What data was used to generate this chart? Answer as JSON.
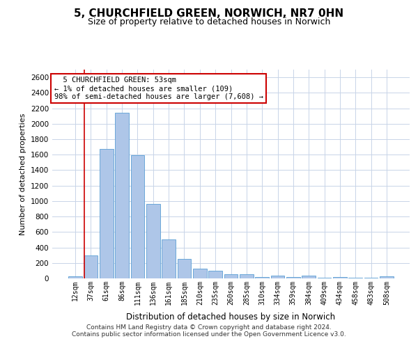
{
  "title_line1": "5, CHURCHFIELD GREEN, NORWICH, NR7 0HN",
  "title_line2": "Size of property relative to detached houses in Norwich",
  "xlabel": "Distribution of detached houses by size in Norwich",
  "ylabel": "Number of detached properties",
  "categories": [
    "12sqm",
    "37sqm",
    "61sqm",
    "86sqm",
    "111sqm",
    "136sqm",
    "161sqm",
    "185sqm",
    "210sqm",
    "235sqm",
    "260sqm",
    "285sqm",
    "310sqm",
    "334sqm",
    "359sqm",
    "384sqm",
    "409sqm",
    "434sqm",
    "458sqm",
    "483sqm",
    "508sqm"
  ],
  "values": [
    25,
    300,
    1670,
    2140,
    1590,
    960,
    500,
    250,
    125,
    100,
    50,
    50,
    20,
    40,
    20,
    40,
    5,
    20,
    5,
    5,
    25
  ],
  "bar_color": "#aec6e8",
  "bar_edge_color": "#5a9fd4",
  "grid_color": "#c8d4e8",
  "annotation_line1": "  5 CHURCHFIELD GREEN: 53sqm",
  "annotation_line2": "← 1% of detached houses are smaller (109)",
  "annotation_line3": "98% of semi-detached houses are larger (7,608) →",
  "annotation_box_facecolor": "#ffffff",
  "annotation_box_edgecolor": "#cc0000",
  "vline_color": "#cc0000",
  "vline_x": 1.0,
  "ylim_max": 2700,
  "ytick_step": 200,
  "footer_line1": "Contains HM Land Registry data © Crown copyright and database right 2024.",
  "footer_line2": "Contains public sector information licensed under the Open Government Licence v3.0.",
  "background_color": "#ffffff",
  "fig_width": 6.0,
  "fig_height": 5.0,
  "dpi": 100
}
